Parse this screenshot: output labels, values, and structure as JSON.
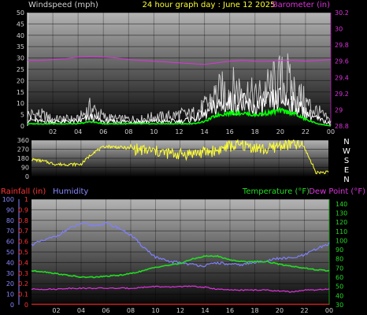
{
  "header": {
    "title": "24 hour graph day : June 12 2025",
    "wind_label": "Windspeed (mph)",
    "baro_label": "Barometer (in)"
  },
  "lower_header": {
    "rain_label": "Rainfall (in)",
    "humidity_label": "Humidity",
    "temp_label": "Temperature (°F)",
    "dew_label": "Dew Point (°F)"
  },
  "compass_letters": [
    "N",
    "W",
    "S",
    "E",
    "N"
  ],
  "colors": {
    "wind": "#ffffff",
    "gust": "#c8c8c8",
    "avg": "#00ff00",
    "baro": "#dd33dd",
    "dir": "#ffff33",
    "humidity": "#8080ff",
    "temp": "#22dd22",
    "dew": "#dd33dd",
    "rain": "#ff2020",
    "rain_axis": "#ff3333",
    "humidity_axis": "#8888ff",
    "temp_axis": "#22dd22",
    "baro_axis": "#dd33dd",
    "text": "#d0d0d0"
  },
  "chart_data": [
    {
      "type": "line",
      "title": "24 hour graph day : June 12 2025",
      "x_ticks": [
        "02",
        "04",
        "06",
        "08",
        "10",
        "12",
        "14",
        "16",
        "18",
        "20",
        "22",
        "00"
      ],
      "left_axis": {
        "label": "Windspeed (mph)",
        "range": [
          0,
          50
        ],
        "ticks": [
          "0",
          "5",
          "10",
          "15",
          "20",
          "25",
          "30",
          "35",
          "40",
          "45",
          "50"
        ]
      },
      "right_axis": {
        "label": "Barometer (in)",
        "range": [
          28.8,
          30.2
        ],
        "ticks": [
          "28.8",
          "29",
          "29.2",
          "29.4",
          "29.6",
          "29.8",
          "30",
          "30.2"
        ]
      },
      "x_hours": [
        0,
        1,
        2,
        3,
        4,
        5,
        6,
        7,
        8,
        9,
        10,
        11,
        12,
        13,
        14,
        15,
        16,
        17,
        18,
        19,
        20,
        21,
        22,
        23,
        24
      ],
      "series": [
        {
          "key": "gust",
          "axis": "left",
          "values": [
            5,
            5,
            3,
            3,
            3,
            8,
            4,
            3,
            3,
            3,
            4,
            4,
            5,
            5,
            8,
            14,
            16,
            16,
            12,
            16,
            20,
            16,
            10,
            6,
            2
          ]
        },
        {
          "key": "wind",
          "axis": "left",
          "values": [
            3,
            2,
            2,
            2,
            2,
            4,
            2,
            2,
            2,
            2,
            2,
            2,
            2,
            3,
            5,
            9,
            10,
            10,
            8,
            10,
            12,
            10,
            6,
            3,
            1
          ]
        },
        {
          "key": "avg",
          "axis": "left",
          "values": [
            1,
            1,
            1,
            1,
            1,
            2,
            1,
            1,
            1,
            1,
            1,
            1,
            1,
            1,
            2,
            5,
            6,
            6,
            5,
            6,
            7,
            6,
            3,
            1,
            0
          ]
        },
        {
          "key": "baro",
          "axis": "right",
          "values": [
            29.61,
            29.61,
            29.62,
            29.63,
            29.65,
            29.66,
            29.65,
            29.64,
            29.62,
            29.61,
            29.6,
            29.59,
            29.58,
            29.57,
            29.56,
            29.58,
            29.6,
            29.61,
            29.6,
            29.6,
            29.61,
            29.61,
            29.6,
            29.61,
            29.62
          ]
        }
      ]
    },
    {
      "type": "line",
      "title": "",
      "right_labels": [
        "N",
        "W",
        "S",
        "E",
        "N"
      ],
      "left_axis": {
        "label": "",
        "range": [
          0,
          360
        ],
        "ticks": [
          "0",
          "90",
          "180",
          "270",
          "360"
        ]
      },
      "x_hours": [
        0,
        1,
        2,
        3,
        4,
        5,
        6,
        7,
        8,
        9,
        10,
        11,
        12,
        13,
        14,
        15,
        16,
        17,
        18,
        19,
        20,
        21,
        22,
        23,
        24
      ],
      "series": [
        {
          "key": "dir",
          "values": [
            170,
            150,
            120,
            120,
            120,
            240,
            300,
            290,
            280,
            260,
            250,
            230,
            220,
            230,
            240,
            260,
            300,
            310,
            290,
            260,
            310,
            320,
            300,
            40,
            40
          ]
        }
      ]
    },
    {
      "type": "line",
      "title": "",
      "x_ticks": [
        "02",
        "04",
        "06",
        "08",
        "10",
        "12",
        "14",
        "16",
        "18",
        "20",
        "22",
        "00"
      ],
      "left_axis_humidity": {
        "label": "Humidity",
        "range": [
          0,
          100
        ],
        "ticks": [
          "0",
          "10",
          "20",
          "30",
          "40",
          "50",
          "60",
          "70",
          "80",
          "90",
          "100"
        ]
      },
      "left_axis_rain": {
        "label": "Rainfall (in)",
        "range": [
          0,
          1
        ],
        "ticks": [
          "0",
          "0.1",
          "0.2",
          "0.3",
          "0.4",
          "0.5",
          "0.6",
          "0.7",
          "0.8",
          "0.9",
          "1"
        ]
      },
      "right_axis": {
        "label": "Temperature (°F)",
        "range": [
          30,
          145
        ],
        "ticks": [
          "30",
          "40",
          "50",
          "60",
          "70",
          "80",
          "90",
          "100",
          "110",
          "120",
          "130",
          "140"
        ]
      },
      "x_hours": [
        0,
        1,
        2,
        3,
        4,
        5,
        6,
        7,
        8,
        9,
        10,
        11,
        12,
        13,
        14,
        15,
        16,
        17,
        18,
        19,
        20,
        21,
        22,
        23,
        24
      ],
      "series": [
        {
          "key": "humidity",
          "axis": "humidity",
          "name": "Humidity",
          "values": [
            57,
            61,
            65,
            72,
            77,
            75,
            77,
            73,
            66,
            55,
            45,
            41,
            40,
            38,
            37,
            40,
            38,
            38,
            40,
            42,
            44,
            44,
            47,
            53,
            58
          ]
        },
        {
          "key": "temp",
          "axis": "temp",
          "name": "Temperature (°F)",
          "values": [
            67,
            66,
            64,
            62,
            60,
            60,
            61,
            62,
            64,
            67,
            71,
            73,
            75,
            80,
            83,
            83,
            79,
            77,
            77,
            77,
            74,
            72,
            70,
            68,
            67
          ]
        },
        {
          "key": "dew",
          "axis": "temp",
          "name": "Dew Point (°F)",
          "values": [
            47,
            47,
            47,
            48,
            48,
            48,
            48,
            48,
            48,
            49,
            50,
            49,
            50,
            50,
            49,
            47,
            46,
            46,
            46,
            46,
            45,
            44,
            46,
            46,
            47
          ]
        },
        {
          "key": "rain",
          "axis": "rain",
          "name": "Rainfall (in)",
          "values": [
            0,
            0,
            0,
            0,
            0,
            0,
            0,
            0,
            0,
            0,
            0,
            0,
            0,
            0,
            0,
            0,
            0,
            0,
            0,
            0,
            0,
            0,
            0,
            0,
            0
          ]
        }
      ]
    }
  ]
}
